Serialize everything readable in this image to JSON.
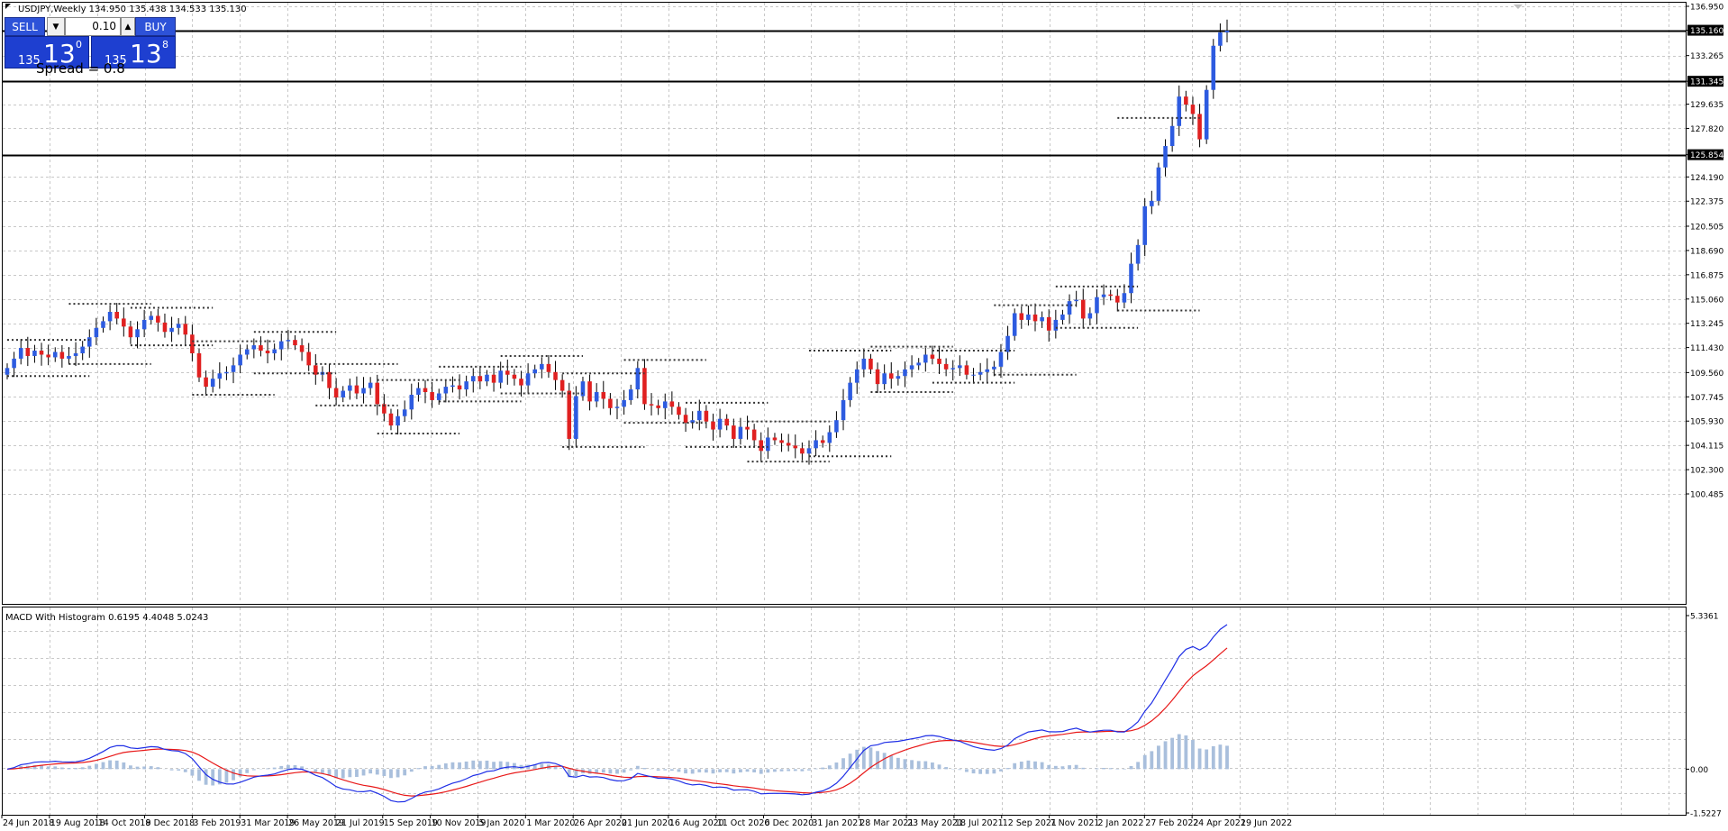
{
  "chart_header": "USDJPY,Weekly  134.950 135.438 134.533 135.130",
  "one_click": {
    "sell_label": "SELL",
    "buy_label": "BUY",
    "lot": "0.10",
    "sell_price": {
      "prefix": "135",
      "big": "13",
      "sup": "0"
    },
    "buy_price": {
      "prefix": "135",
      "big": "13",
      "sup": "8"
    },
    "spread_text": "Spread = 0.8"
  },
  "price_axis_labels": [
    "136.950",
    "135.160",
    "133.265",
    "131.345",
    "129.635",
    "127.820",
    "125.854",
    "124.190",
    "122.375",
    "120.505",
    "118.690",
    "116.875",
    "115.060",
    "113.245",
    "111.430",
    "109.560",
    "107.745",
    "105.930",
    "104.115",
    "102.300",
    "100.485"
  ],
  "horizontal_lines": [
    135.16,
    131.345,
    125.854
  ],
  "macd_header": "MACD With Histogram 0.6195 4.4048 5.0243",
  "macd_axis_labels": [
    "5.3361",
    "0.00",
    "-1.5227"
  ],
  "time_axis_labels": [
    "24 Jun 2018",
    "19 Aug 2018",
    "14 Oct 2018",
    "9 Dec 2018",
    "3 Feb 2019",
    "31 Mar 2019",
    "26 May 2019",
    "21 Jul 2019",
    "15 Sep 2019",
    "10 Nov 2019",
    "5 Jan 2020",
    "1 Mar 2020",
    "26 Apr 2020",
    "21 Jun 2020",
    "16 Aug 2020",
    "11 Oct 2020",
    "6 Dec 2020",
    "31 Jan 2021",
    "28 Mar 2021",
    "23 May 2021",
    "18 Jul 2021",
    "12 Sep 2021",
    "7 Nov 2021",
    "2 Jan 2022",
    "27 Feb 2022",
    "24 Apr 2022",
    "19 Jun 2022"
  ],
  "colors": {
    "bull": "#2d5be0",
    "bear": "#e02020",
    "macd_line": "#1f2fe6",
    "signal_line": "#e81818",
    "histogram": "#a9bfdc",
    "grid": "#c8c8c8"
  },
  "chart_data": {
    "type": "candlestick",
    "symbol": "USDJPY",
    "timeframe": "Weekly",
    "ylim": [
      100.485,
      136.95
    ],
    "closes": [
      109.9,
      110.6,
      111.4,
      110.8,
      111.2,
      110.9,
      110.7,
      111.1,
      110.6,
      110.8,
      111.0,
      111.5,
      112.2,
      112.9,
      113.4,
      114.1,
      113.6,
      113.0,
      112.2,
      112.8,
      113.5,
      113.8,
      113.3,
      112.6,
      112.9,
      113.2,
      112.4,
      111.0,
      109.2,
      108.5,
      109.1,
      109.5,
      109.6,
      110.1,
      110.9,
      111.3,
      111.6,
      111.2,
      111.0,
      111.3,
      111.9,
      112.0,
      111.6,
      111.1,
      110.1,
      109.4,
      109.6,
      108.4,
      107.7,
      108.2,
      108.6,
      108.0,
      108.4,
      108.8,
      107.2,
      106.5,
      105.6,
      106.3,
      106.8,
      107.9,
      108.4,
      108.1,
      107.5,
      108.0,
      108.5,
      108.6,
      108.3,
      108.9,
      109.3,
      108.9,
      109.4,
      108.8,
      109.7,
      109.4,
      109.1,
      108.6,
      109.5,
      109.8,
      110.2,
      109.6,
      109.0,
      108.2,
      104.6,
      107.8,
      108.9,
      107.4,
      108.1,
      107.6,
      106.9,
      107.0,
      107.5,
      108.3,
      109.9,
      107.2,
      107.1,
      106.9,
      107.4,
      107.0,
      106.4,
      105.8,
      106.0,
      106.7,
      105.9,
      105.3,
      106.1,
      105.6,
      104.6,
      105.5,
      105.3,
      104.5,
      103.7,
      104.7,
      104.5,
      104.3,
      104.1,
      103.9,
      103.5,
      103.9,
      104.5,
      104.3,
      105.1,
      106.0,
      107.5,
      108.8,
      109.8,
      110.6,
      109.8,
      108.7,
      109.5,
      109.1,
      109.3,
      109.8,
      110.1,
      110.3,
      110.9,
      110.6,
      110.2,
      109.8,
      109.9,
      110.1,
      109.4,
      109.4,
      109.6,
      109.8,
      110.0,
      111.1,
      112.3,
      114.0,
      113.5,
      113.9,
      113.4,
      113.7,
      112.7,
      113.5,
      113.9,
      114.9,
      115.0,
      113.6,
      114.0,
      115.2,
      115.4,
      115.3,
      114.8,
      115.5,
      117.7,
      119.1,
      122.0,
      122.4,
      124.9,
      126.5,
      128.0,
      130.2,
      129.6,
      128.9,
      127.0,
      130.7,
      134.0,
      135.0,
      135.13
    ],
    "macd_line_endpoint": 5.0243,
    "signal_endpoint": 4.4048,
    "histogram_endpoint": 0.6195
  }
}
